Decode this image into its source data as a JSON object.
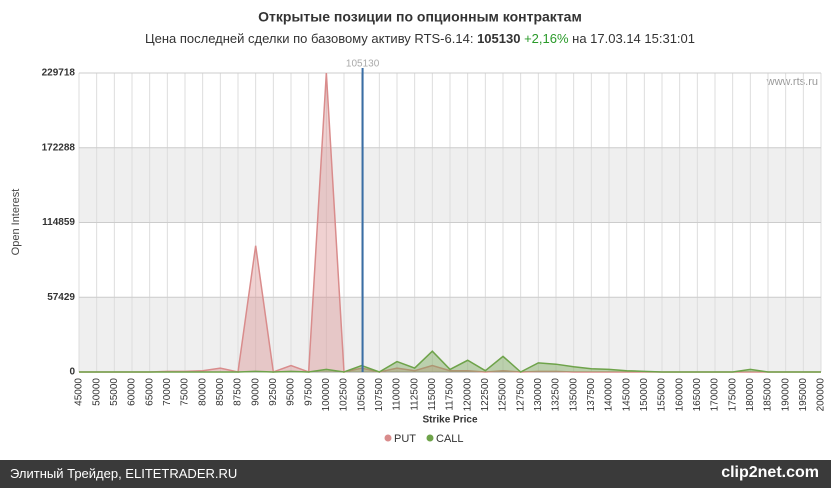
{
  "chart_data": {
    "type": "area",
    "title": "Открытые позиции по опционным контрактам",
    "subtitle_prefix": "Цена последней сделки по базовому активу RTS-6.14:",
    "last_price": 105130,
    "change": "+2,16%",
    "date_text": "на 17.03.14 15:31:01",
    "watermark": "www.rts.ru",
    "x_label": "Strike Price",
    "y_label": "Open Interest",
    "categories": [
      45000,
      50000,
      55000,
      60000,
      65000,
      70000,
      75000,
      80000,
      85000,
      87500,
      90000,
      92500,
      95000,
      97500,
      100000,
      102500,
      105000,
      107500,
      110000,
      112500,
      115000,
      117500,
      120000,
      122500,
      125000,
      127500,
      130000,
      132500,
      135000,
      137500,
      140000,
      145000,
      150000,
      155000,
      160000,
      165000,
      170000,
      175000,
      180000,
      185000,
      190000,
      195000,
      200000
    ],
    "series": [
      {
        "name": "PUT",
        "color": "#d98c8c",
        "values": [
          0,
          0,
          0,
          0,
          0,
          500,
          500,
          1000,
          3000,
          0,
          97000,
          0,
          5000,
          0,
          229718,
          0,
          3000,
          0,
          3000,
          1000,
          5000,
          1000,
          1000,
          0,
          1000,
          0,
          500,
          500,
          0,
          0,
          0,
          0,
          0,
          0,
          0,
          0,
          0,
          0,
          0,
          0,
          0,
          0,
          0
        ]
      },
      {
        "name": "CALL",
        "color": "#6ea34a",
        "values": [
          0,
          0,
          0,
          0,
          0,
          0,
          0,
          0,
          0,
          0,
          500,
          0,
          500,
          0,
          2000,
          0,
          5000,
          0,
          8000,
          3000,
          16000,
          2000,
          9000,
          1000,
          12000,
          0,
          7000,
          6000,
          4000,
          2500,
          2000,
          1000,
          500,
          0,
          0,
          0,
          0,
          0,
          2000,
          0,
          0,
          0,
          0
        ]
      }
    ],
    "ylim": [
      0,
      229718
    ],
    "yticks": [
      0,
      57429,
      114859,
      172288,
      229718
    ],
    "grid": true
  },
  "footer": {
    "text": "Элитный Трейдер, ELITETRADER.RU",
    "logo": "clip2net.com"
  }
}
